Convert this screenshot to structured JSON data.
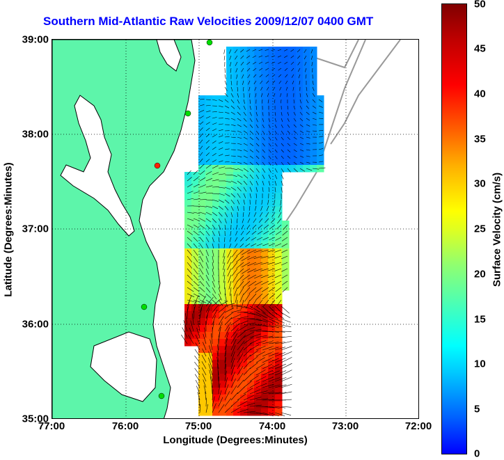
{
  "title": "Southern Mid-Atlantic Raw Velocities 2009/12/07 0400 GMT",
  "x_axis": {
    "label": "Longitude (Degrees:Minutes)",
    "ticks": [
      "77:00",
      "76:00",
      "75:00",
      "74:00",
      "73:00",
      "72:00"
    ]
  },
  "y_axis": {
    "label": "Latitude (Degrees:Minutes)",
    "ticks": [
      "39:00",
      "38:00",
      "37:00",
      "36:00",
      "35:00"
    ]
  },
  "colorbar": {
    "label": "Surface Velocity (cm/s)",
    "ticks": [
      "50",
      "45",
      "40",
      "35",
      "30",
      "25",
      "20",
      "15",
      "10",
      "5",
      "0"
    ],
    "min": 0,
    "max": 50
  },
  "colors": {
    "land": "#5df5aa",
    "coastline": "#000000",
    "bathymetry": "#999999",
    "station": "#00dd00",
    "station_alt": "#ff2000",
    "title": "#0000ff"
  }
}
